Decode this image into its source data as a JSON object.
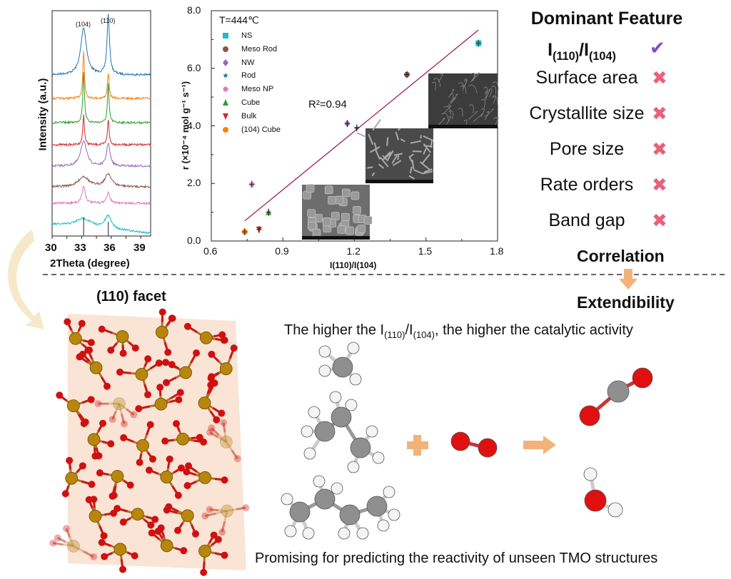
{
  "chart_data": [
    {
      "type": "line",
      "title": "",
      "xlabel": "2Theta (degree)",
      "ylabel": "Intensity (a.u.)",
      "xlim": [
        30,
        40
      ],
      "xticks": [
        "30",
        "33",
        "36",
        "39"
      ],
      "peak_labels": [
        "(104)",
        "(110)"
      ],
      "peak_positions": [
        33.2,
        35.7
      ],
      "series": [
        {
          "color": "#1f77b4",
          "peak_heights": [
            0.55,
            0.7
          ],
          "widths": [
            0.35,
            0.15
          ]
        },
        {
          "color": "#ff7f0e",
          "peak_heights": [
            0.55,
            0.3
          ],
          "widths": [
            0.1,
            0.1
          ]
        },
        {
          "color": "#2ca02c",
          "peak_heights": [
            0.6,
            0.45
          ],
          "widths": [
            0.1,
            0.1
          ]
        },
        {
          "color": "#d62728",
          "peak_heights": [
            0.35,
            0.3
          ],
          "widths": [
            0.1,
            0.1
          ]
        },
        {
          "color": "#9467bd",
          "peak_heights": [
            0.3,
            0.27
          ],
          "widths": [
            0.35,
            0.2
          ]
        },
        {
          "color": "#8c564b",
          "peak_heights": [
            0.12,
            0.15
          ],
          "widths": [
            0.6,
            0.4
          ]
        },
        {
          "color": "#e377c2",
          "peak_heights": [
            0.2,
            0.12
          ],
          "widths": [
            0.2,
            0.2
          ]
        },
        {
          "color": "#17becf",
          "peak_heights": [
            0.1,
            0.15
          ],
          "widths": [
            1.0,
            0.4
          ]
        }
      ]
    },
    {
      "type": "scatter",
      "title": "",
      "annotation": "T=444℃",
      "fit_label": "R²=0.94",
      "xlabel": "I(110)/I(104)",
      "ylabel": "r (×10⁻⁴ mol g⁻¹ s⁻¹)",
      "xlim": [
        0.6,
        1.8
      ],
      "ylim": [
        0,
        8
      ],
      "xticks": [
        "0.6",
        "0.9",
        "1.2",
        "1.5",
        "1.8"
      ],
      "yticks": [
        "0.0",
        "2.0",
        "4.0",
        "6.0",
        "8.0"
      ],
      "legend_position": "top-left",
      "fit_line": [
        [
          0.74,
          0.7
        ],
        [
          1.72,
          7.33
        ]
      ],
      "series": [
        {
          "name": "NS",
          "x": 1.72,
          "y": 6.87,
          "marker": "square",
          "color": "#17becf"
        },
        {
          "name": "Meso Rod",
          "x": 1.42,
          "y": 5.78,
          "marker": "circle",
          "color": "#8c564b"
        },
        {
          "name": "NW",
          "x": 1.17,
          "y": 4.08,
          "marker": "diamond",
          "color": "#9467bd"
        },
        {
          "name": "Rod",
          "x": 1.21,
          "y": 3.93,
          "marker": "star",
          "color": "#1f77b4"
        },
        {
          "name": "Meso NP",
          "x": 0.77,
          "y": 1.97,
          "marker": "pentagon",
          "color": "#e377c2"
        },
        {
          "name": "Cube",
          "x": 0.84,
          "y": 1.0,
          "marker": "triangle",
          "color": "#2ca02c"
        },
        {
          "name": "Bulk",
          "x": 0.8,
          "y": 0.4,
          "marker": "triangle-down",
          "color": "#d62728"
        },
        {
          "name": "(104) Cube",
          "x": 0.74,
          "y": 0.32,
          "marker": "circle",
          "color": "#ff7f0e"
        }
      ]
    }
  ],
  "features": {
    "title": "Dominant Feature",
    "dominant": {
      "main": "I",
      "sub1": "(110)",
      "slash": "/I",
      "sub2": "(104)",
      "status": "check"
    },
    "items": [
      {
        "label": "Surface area",
        "status": "cross"
      },
      {
        "label": "Crystallite size",
        "status": "cross"
      },
      {
        "label": "Pore size",
        "status": "cross"
      },
      {
        "label": "Rate orders",
        "status": "cross"
      },
      {
        "label": "Band gap",
        "status": "cross"
      }
    ],
    "check_glyph": "✔",
    "cross_glyph": "✖",
    "check_color": "#7b4fc9",
    "cross_color": "#e8607a"
  },
  "correlation": "Correlation",
  "extendibility": "Extendibility",
  "facet_label": "(110) facet",
  "statement": {
    "pre": "The higher the I",
    "s1": "(110)",
    "mid": "/I",
    "s2": "(104)",
    "post": ", the higher the catalytic activity"
  },
  "bottom_caption": "Promising for predicting the reactivity of unseen TMO structures",
  "colors": {
    "accent_orange": "#f2b27a",
    "fit_line": "#a0205a",
    "metal": "#b8860b",
    "oxygen": "#d01010"
  }
}
